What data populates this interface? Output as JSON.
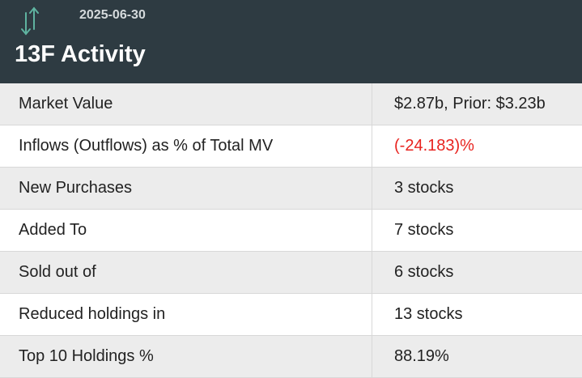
{
  "header": {
    "date": "2025-06-30",
    "title": "13F Activity"
  },
  "table": {
    "rows": [
      [
        "Market Value",
        "$2.87b, Prior: $3.23b"
      ],
      [
        "Inflows (Outflows) as % of Total MV",
        "(-24.183)%"
      ],
      [
        "New Purchases",
        "3 stocks"
      ],
      [
        "Added To",
        "7 stocks"
      ],
      [
        "Sold out of",
        "6 stocks"
      ],
      [
        "Reduced holdings in",
        "13 stocks"
      ],
      [
        "Top 10 Holdings %",
        "88.19%"
      ]
    ]
  }
}
